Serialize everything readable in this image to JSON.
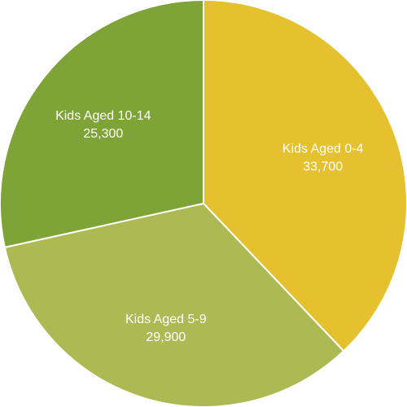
{
  "chart_data": {
    "type": "pie",
    "title": "",
    "start_angle_deg": 0,
    "direction": "clockwise",
    "slices": [
      {
        "label": "Kids Aged 0-4",
        "value": 33700,
        "display_value": "33,700",
        "color": "#e6c12f"
      },
      {
        "label": "Kids Aged 5-9",
        "value": 29900,
        "display_value": "29,900",
        "color": "#adb953"
      },
      {
        "label": "Kids Aged 10-14",
        "value": 25300,
        "display_value": "25,300",
        "color": "#7ea336"
      }
    ]
  }
}
